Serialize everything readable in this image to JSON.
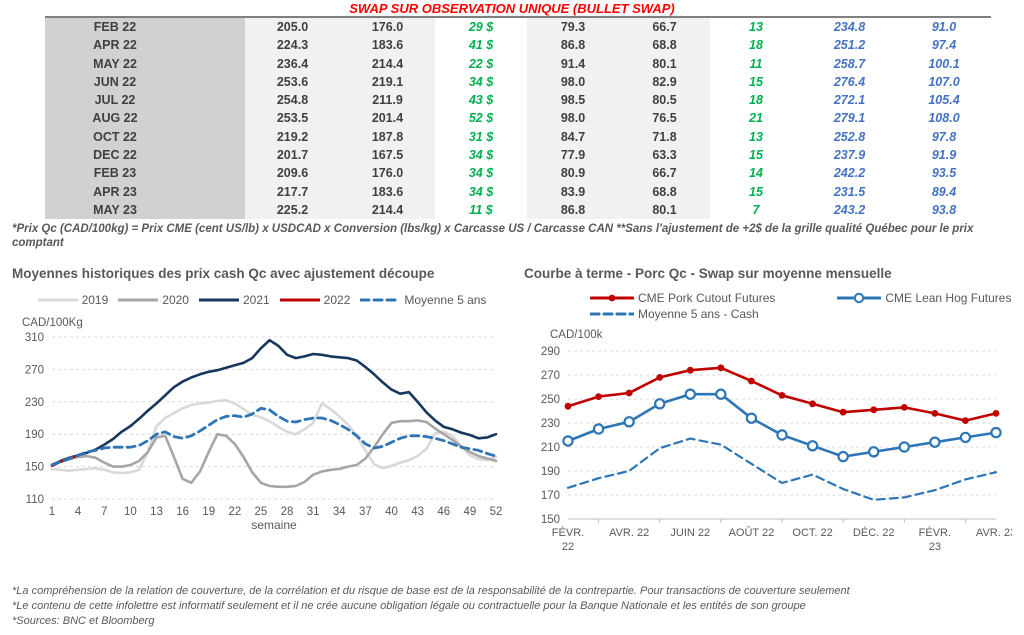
{
  "title": "SWAP SUR OBSERVATION UNIQUE (BULLET SWAP)",
  "table": {
    "rows": [
      {
        "month": "FEB 22",
        "v1": "205.0",
        "v2": "176.0",
        "gain": "29 $",
        "v3": "79.3",
        "v4": "66.7",
        "n": "13",
        "b1": "234.8",
        "b2": "91.0"
      },
      {
        "month": "APR 22",
        "v1": "224.3",
        "v2": "183.6",
        "gain": "41 $",
        "v3": "86.8",
        "v4": "68.8",
        "n": "18",
        "b1": "251.2",
        "b2": "97.4"
      },
      {
        "month": "MAY 22",
        "v1": "236.4",
        "v2": "214.4",
        "gain": "22 $",
        "v3": "91.4",
        "v4": "80.1",
        "n": "11",
        "b1": "258.7",
        "b2": "100.1"
      },
      {
        "month": "JUN 22",
        "v1": "253.6",
        "v2": "219.1",
        "gain": "34 $",
        "v3": "98.0",
        "v4": "82.9",
        "n": "15",
        "b1": "276.4",
        "b2": "107.0"
      },
      {
        "month": "JUL 22",
        "v1": "254.8",
        "v2": "211.9",
        "gain": "43 $",
        "v3": "98.5",
        "v4": "80.5",
        "n": "18",
        "b1": "272.1",
        "b2": "105.4"
      },
      {
        "month": "AUG 22",
        "v1": "253.5",
        "v2": "201.4",
        "gain": "52 $",
        "v3": "98.0",
        "v4": "76.5",
        "n": "21",
        "b1": "279.1",
        "b2": "108.0"
      },
      {
        "month": "OCT 22",
        "v1": "219.2",
        "v2": "187.8",
        "gain": "31 $",
        "v3": "84.7",
        "v4": "71.8",
        "n": "13",
        "b1": "252.8",
        "b2": "97.8"
      },
      {
        "month": "DEC 22",
        "v1": "201.7",
        "v2": "167.5",
        "gain": "34 $",
        "v3": "77.9",
        "v4": "63.3",
        "n": "15",
        "b1": "237.9",
        "b2": "91.9"
      },
      {
        "month": "FEB 23",
        "v1": "209.6",
        "v2": "176.0",
        "gain": "34 $",
        "v3": "80.9",
        "v4": "66.7",
        "n": "14",
        "b1": "242.2",
        "b2": "93.5"
      },
      {
        "month": "APR 23",
        "v1": "217.7",
        "v2": "183.6",
        "gain": "34 $",
        "v3": "83.9",
        "v4": "68.8",
        "n": "15",
        "b1": "231.5",
        "b2": "89.4"
      },
      {
        "month": "MAY 23",
        "v1": "225.2",
        "v2": "214.4",
        "gain": "11 $",
        "v3": "86.8",
        "v4": "80.1",
        "n": "7",
        "b1": "243.2",
        "b2": "93.8"
      }
    ]
  },
  "table_footnote": "*Prix Qc (CAD/100kg) = Prix CME (cent US/lb) x USDCAD x Conversion (lbs/kg) x Carcasse US / Carcasse CAN **Sans l'ajustement de +2$ de la grille qualité Québec pour le prix comptant",
  "colors": {
    "title_red": "#ff0000",
    "green_value": "#00b050",
    "blue_value": "#4472c4",
    "navy_line": "#17375e",
    "red_line": "#c00000",
    "blue_line": "#2e75b6",
    "gray_2020": "#a6a6a6",
    "gray_2019": "#d9d9d9",
    "gridline": "#d9d9d9",
    "text_gray": "#595959"
  },
  "chart_data": [
    {
      "id": "historical",
      "type": "line",
      "title": "Moyennes historiques des prix cash Qc avec ajustement découpe",
      "y_unit": "CAD/100Kg",
      "xlabel": "semaine",
      "x_range": [
        1,
        52
      ],
      "x_ticks": [
        1,
        4,
        7,
        10,
        13,
        16,
        19,
        22,
        25,
        28,
        31,
        34,
        37,
        40,
        43,
        46,
        49,
        52
      ],
      "ylim": [
        110,
        310
      ],
      "y_ticks": [
        110,
        150,
        190,
        230,
        270,
        310
      ],
      "grid": "horizontal-dashed",
      "legend_position": "top-center",
      "series": [
        {
          "name": "2019",
          "color": "#d9d9d9",
          "style": "solid",
          "marker": "none",
          "values": [
            147,
            146,
            145,
            146,
            147,
            148,
            146,
            143,
            142,
            143,
            146,
            168,
            200,
            210,
            216,
            222,
            226,
            228,
            229,
            231,
            232,
            228,
            221,
            214,
            211,
            206,
            199,
            193,
            190,
            196,
            204,
            228,
            221,
            212,
            202,
            188,
            170,
            153,
            148,
            151,
            155,
            158,
            163,
            172,
            191,
            193,
            188,
            175,
            164,
            159,
            158,
            162
          ]
        },
        {
          "name": "2020",
          "color": "#a6a6a6",
          "style": "solid",
          "marker": "none",
          "values": [
            153,
            156,
            159,
            162,
            163,
            161,
            155,
            150,
            150,
            152,
            157,
            168,
            186,
            188,
            162,
            135,
            130,
            144,
            168,
            190,
            188,
            178,
            162,
            143,
            130,
            126,
            125,
            125,
            126,
            131,
            140,
            144,
            146,
            147,
            150,
            152,
            160,
            174,
            190,
            204,
            206,
            206,
            207,
            205,
            197,
            190,
            183,
            175,
            168,
            163,
            160,
            157
          ]
        },
        {
          "name": "2021",
          "color": "#17375e",
          "style": "solid",
          "marker": "none",
          "values": [
            152,
            157,
            161,
            164,
            167,
            171,
            177,
            184,
            193,
            200,
            209,
            219,
            228,
            238,
            248,
            255,
            260,
            264,
            267,
            269,
            272,
            275,
            278,
            284,
            296,
            306,
            299,
            288,
            284,
            286,
            289,
            288,
            286,
            285,
            284,
            281,
            273,
            264,
            254,
            245,
            240,
            242,
            230,
            217,
            207,
            199,
            196,
            192,
            189,
            185,
            186,
            190
          ]
        },
        {
          "name": "2022",
          "color": "#c00000",
          "style": "solid",
          "marker": "none",
          "values": [
            151,
            156,
            160,
            164
          ]
        },
        {
          "name": "Moyenne 5 ans",
          "color": "#2e75b6",
          "style": "dashed",
          "marker": "none",
          "values": [
            152,
            156,
            160,
            164,
            168,
            170,
            173,
            174,
            174,
            174,
            176,
            182,
            190,
            193,
            187,
            185,
            188,
            194,
            201,
            208,
            212,
            213,
            211,
            215,
            222,
            220,
            212,
            206,
            205,
            208,
            210,
            210,
            207,
            202,
            196,
            188,
            178,
            173,
            175,
            180,
            185,
            188,
            188,
            187,
            185,
            182,
            178,
            174,
            172,
            170,
            166,
            163
          ]
        }
      ]
    },
    {
      "id": "forward",
      "type": "line",
      "title": "Courbe à terme - Porc Qc - Swap sur moyenne mensuelle",
      "y_unit": "CAD/100k",
      "n_points": 15,
      "x_tick_positions": [
        1,
        3,
        5,
        7,
        9,
        11,
        13,
        15
      ],
      "x_tick_labels": [
        [
          "FÉVR.",
          "22"
        ],
        [
          "AVR. 22"
        ],
        [
          "JUIN 22"
        ],
        [
          "AOÛT 22"
        ],
        [
          "OCT. 22"
        ],
        [
          "DÉC. 22"
        ],
        [
          "FÉVR.",
          "23"
        ],
        [
          "AVR. 23"
        ]
      ],
      "ylim": [
        150,
        290
      ],
      "y_ticks": [
        150,
        170,
        190,
        210,
        230,
        250,
        270,
        290
      ],
      "grid": "horizontal-dashed",
      "legend_position": "top-left",
      "series": [
        {
          "name": "CME Pork Cutout Futures",
          "color": "#c00000",
          "style": "solid",
          "marker": "filled-circle",
          "values": [
            244,
            252,
            255,
            268,
            274,
            276,
            265,
            253,
            246,
            239,
            241,
            243,
            238,
            232,
            238
          ]
        },
        {
          "name": "CME Lean Hog Futures",
          "color": "#2e75b6",
          "style": "solid",
          "marker": "open-circle",
          "values": [
            215,
            225,
            231,
            246,
            254,
            254,
            234,
            220,
            211,
            202,
            206,
            210,
            214,
            218,
            222
          ]
        },
        {
          "name": "Moyenne 5 ans - Cash",
          "color": "#2e75b6",
          "style": "dashed",
          "marker": "none",
          "values": [
            176,
            184,
            190,
            209,
            217,
            212,
            196,
            180,
            187,
            175,
            166,
            168,
            174,
            183,
            189
          ]
        }
      ]
    }
  ],
  "bottom_notes": [
    "*La compréhension de la relation de couverture, de la corrélation et du risque de base est de la responsabilité de la contrepartie. Pour transactions de couverture seulement",
    "*Le contenu de cette infolettre est informatif seulement et il ne crée aucune obligation légale ou contractuelle pour la Banque Nationale et les entités de son groupe",
    "*Sources: BNC et Bloomberg"
  ]
}
